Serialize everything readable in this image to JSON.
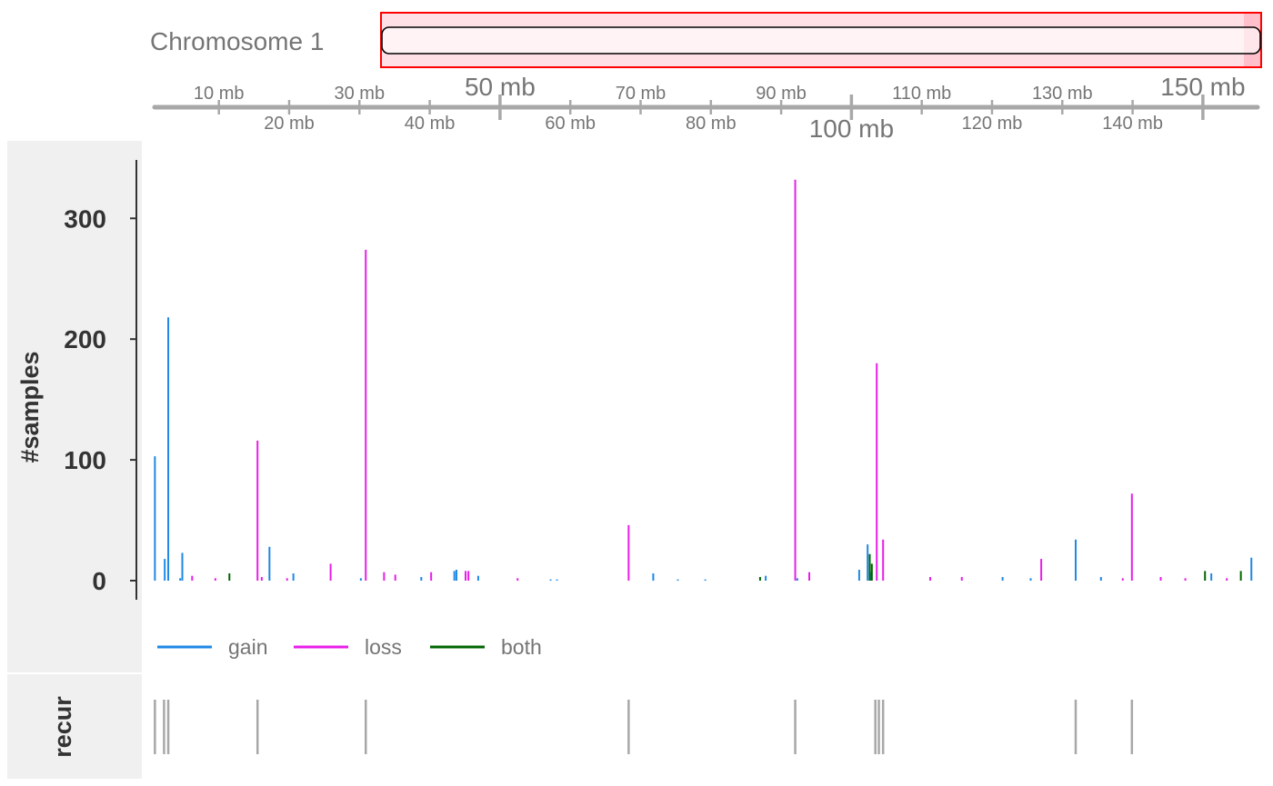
{
  "ideogram": {
    "chromosome_label": "Chromosome 1"
  },
  "axis": {
    "major_ticks": [
      {
        "mb": 50,
        "label": "50 mb",
        "row": "top"
      },
      {
        "mb": 100,
        "label": "100 mb",
        "row": "bottom"
      },
      {
        "mb": 150,
        "label": "150 mb",
        "row": "top"
      }
    ],
    "minor_ticks": [
      {
        "mb": 10,
        "label": "10 mb",
        "row": "top"
      },
      {
        "mb": 20,
        "label": "20 mb",
        "row": "bottom"
      },
      {
        "mb": 30,
        "label": "30 mb",
        "row": "top"
      },
      {
        "mb": 40,
        "label": "40 mb",
        "row": "bottom"
      },
      {
        "mb": 60,
        "label": "60 mb",
        "row": "bottom"
      },
      {
        "mb": 70,
        "label": "70 mb",
        "row": "top"
      },
      {
        "mb": 80,
        "label": "80 mb",
        "row": "bottom"
      },
      {
        "mb": 90,
        "label": "90 mb",
        "row": "top"
      },
      {
        "mb": 110,
        "label": "110 mb",
        "row": "top"
      },
      {
        "mb": 120,
        "label": "120 mb",
        "row": "bottom"
      },
      {
        "mb": 130,
        "label": "130 mb",
        "row": "top"
      },
      {
        "mb": 140,
        "label": "140 mb",
        "row": "bottom"
      }
    ],
    "xlim_mb": [
      0.5,
      157.5
    ]
  },
  "tracks": {
    "samples_label": "#samples",
    "recur_label": "recur"
  },
  "legend": [
    {
      "name": "gain",
      "color": "#1E88E5"
    },
    {
      "name": "loss",
      "color": "#E81EE8"
    },
    {
      "name": "both",
      "color": "#006400"
    }
  ],
  "chart_data": {
    "type": "bar",
    "title": "",
    "xlabel": "",
    "ylabel": "#samples",
    "ylim": [
      0,
      350
    ],
    "yticks": [
      0,
      100,
      200,
      300
    ],
    "x_units": "mb",
    "series": [
      {
        "name": "gain",
        "color": "#1E88E5",
        "points": [
          {
            "x": 0.9,
            "y": 103
          },
          {
            "x": 2.3,
            "y": 18
          },
          {
            "x": 2.8,
            "y": 218
          },
          {
            "x": 4.5,
            "y": 2
          },
          {
            "x": 4.8,
            "y": 23
          },
          {
            "x": 17.2,
            "y": 28
          },
          {
            "x": 20.6,
            "y": 6
          },
          {
            "x": 30.2,
            "y": 2
          },
          {
            "x": 38.8,
            "y": 3
          },
          {
            "x": 43.5,
            "y": 8
          },
          {
            "x": 43.8,
            "y": 9
          },
          {
            "x": 46.9,
            "y": 4
          },
          {
            "x": 57.2,
            "y": 1
          },
          {
            "x": 58.1,
            "y": 1
          },
          {
            "x": 71.8,
            "y": 6
          },
          {
            "x": 75.3,
            "y": 1
          },
          {
            "x": 79.2,
            "y": 1
          },
          {
            "x": 87.8,
            "y": 4
          },
          {
            "x": 92.3,
            "y": 2
          },
          {
            "x": 101.1,
            "y": 9
          },
          {
            "x": 102.3,
            "y": 30
          },
          {
            "x": 102.8,
            "y": 7
          },
          {
            "x": 121.5,
            "y": 3
          },
          {
            "x": 125.5,
            "y": 2
          },
          {
            "x": 131.9,
            "y": 34
          },
          {
            "x": 135.5,
            "y": 3
          },
          {
            "x": 151.2,
            "y": 6
          },
          {
            "x": 156.9,
            "y": 19
          }
        ]
      },
      {
        "name": "loss",
        "color": "#E81EE8",
        "points": [
          {
            "x": 6.2,
            "y": 4
          },
          {
            "x": 9.5,
            "y": 2
          },
          {
            "x": 15.5,
            "y": 116
          },
          {
            "x": 16.1,
            "y": 3
          },
          {
            "x": 19.7,
            "y": 2
          },
          {
            "x": 25.9,
            "y": 14
          },
          {
            "x": 30.9,
            "y": 274
          },
          {
            "x": 33.5,
            "y": 7
          },
          {
            "x": 35.1,
            "y": 5
          },
          {
            "x": 40.2,
            "y": 7
          },
          {
            "x": 45.1,
            "y": 8
          },
          {
            "x": 45.5,
            "y": 8
          },
          {
            "x": 52.5,
            "y": 2
          },
          {
            "x": 68.3,
            "y": 46
          },
          {
            "x": 92.0,
            "y": 332
          },
          {
            "x": 94.0,
            "y": 7
          },
          {
            "x": 103.6,
            "y": 180
          },
          {
            "x": 104.5,
            "y": 34
          },
          {
            "x": 111.2,
            "y": 3
          },
          {
            "x": 115.7,
            "y": 3
          },
          {
            "x": 127.0,
            "y": 18
          },
          {
            "x": 138.6,
            "y": 2
          },
          {
            "x": 139.9,
            "y": 72
          },
          {
            "x": 144.0,
            "y": 3
          },
          {
            "x": 147.5,
            "y": 2
          },
          {
            "x": 153.4,
            "y": 2
          }
        ]
      },
      {
        "name": "both",
        "color": "#006400",
        "points": [
          {
            "x": 11.5,
            "y": 6
          },
          {
            "x": 87.0,
            "y": 3
          },
          {
            "x": 102.6,
            "y": 22
          },
          {
            "x": 102.9,
            "y": 14
          },
          {
            "x": 150.3,
            "y": 8
          },
          {
            "x": 155.4,
            "y": 8
          }
        ]
      }
    ],
    "recurrent_positions_mb": [
      0.9,
      2.2,
      2.8,
      15.5,
      30.9,
      68.3,
      92.0,
      103.4,
      103.9,
      104.5,
      131.9,
      139.9
    ]
  }
}
